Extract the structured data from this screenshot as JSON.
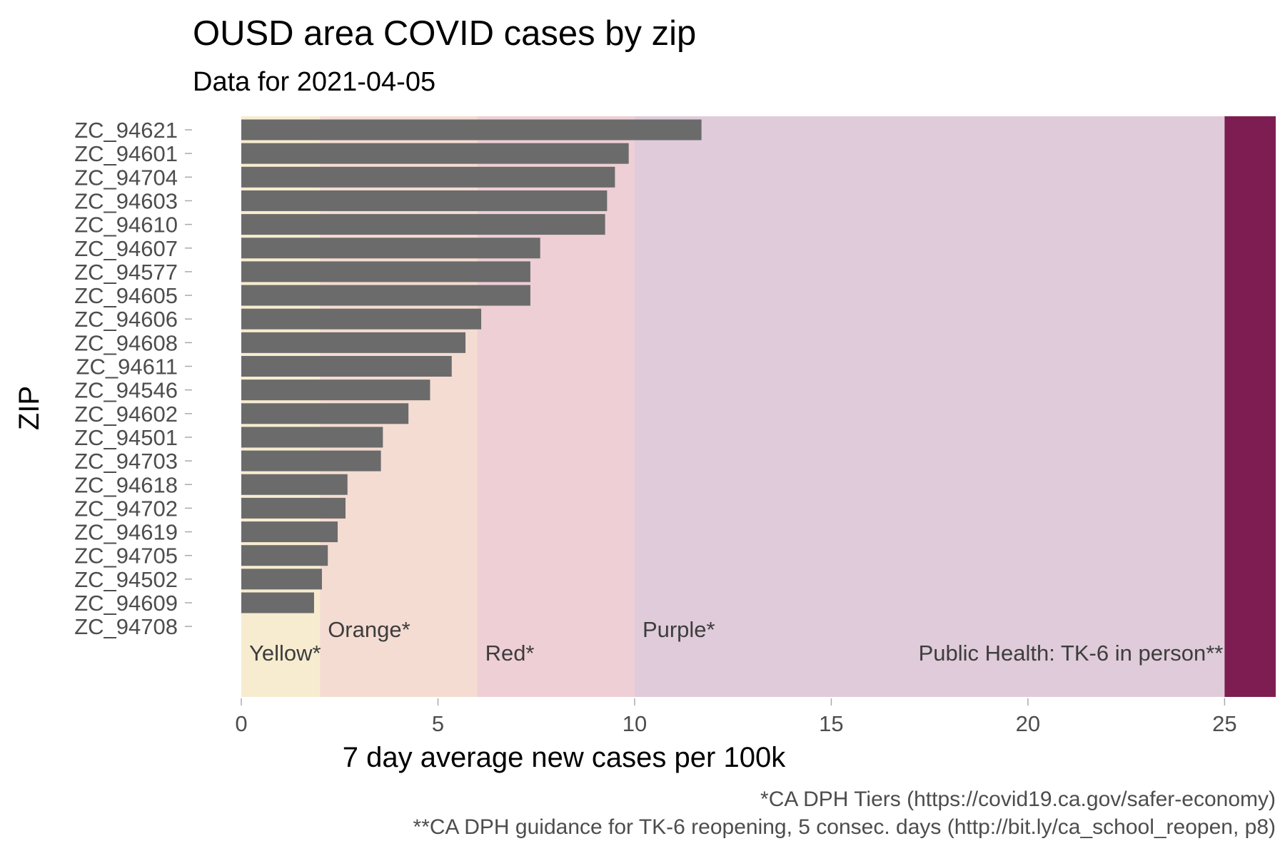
{
  "chart_data": {
    "type": "bar",
    "orientation": "horizontal",
    "title": "OUSD area COVID cases by zip",
    "subtitle": "Data for 2021-04-05",
    "xlabel": "7 day average new cases per 100k",
    "ylabel": "ZIP",
    "xlim": [
      0,
      26.3
    ],
    "xticks": [
      0,
      5,
      10,
      15,
      20,
      25
    ],
    "categories": [
      "ZC_94621",
      "ZC_94601",
      "ZC_94704",
      "ZC_94603",
      "ZC_94610",
      "ZC_94607",
      "ZC_94577",
      "ZC_94605",
      "ZC_94606",
      "ZC_94608",
      "ZC_94611",
      "ZC_94546",
      "ZC_94602",
      "ZC_94501",
      "ZC_94703",
      "ZC_94618",
      "ZC_94702",
      "ZC_94619",
      "ZC_94705",
      "ZC_94502",
      "ZC_94609",
      "ZC_94708"
    ],
    "values": [
      11.7,
      9.85,
      9.5,
      9.3,
      9.25,
      7.6,
      7.35,
      7.35,
      6.1,
      5.7,
      5.35,
      4.8,
      4.25,
      3.6,
      3.55,
      2.7,
      2.65,
      2.45,
      2.2,
      2.05,
      1.85,
      0
    ],
    "bar_color": "#6b6b6b",
    "bands": [
      {
        "label": "Yellow*",
        "from": 0,
        "to": 2,
        "color": "#f7ecd0",
        "label_row": "lower"
      },
      {
        "label": "Orange*",
        "from": 2,
        "to": 6,
        "color": "#f4dcd2",
        "label_row": "upper"
      },
      {
        "label": "Red*",
        "from": 6,
        "to": 10,
        "color": "#eecfd6",
        "label_row": "lower"
      },
      {
        "label": "Purple*",
        "from": 10,
        "to": 25,
        "color": "#dfcbd9",
        "label_row": "upper"
      },
      {
        "label": "Public Health: TK-6 in person**",
        "from": 25,
        "to": 26.3,
        "color": "#7d1d51",
        "label_row": "lower",
        "label_anchor": "end"
      }
    ],
    "captions": [
      "*CA DPH Tiers (https://covid19.ca.gov/safer-economy)",
      "**CA DPH guidance for TK-6 reopening, 5 consec. days (http://bit.ly/ca_school_reopen, p8)"
    ]
  }
}
